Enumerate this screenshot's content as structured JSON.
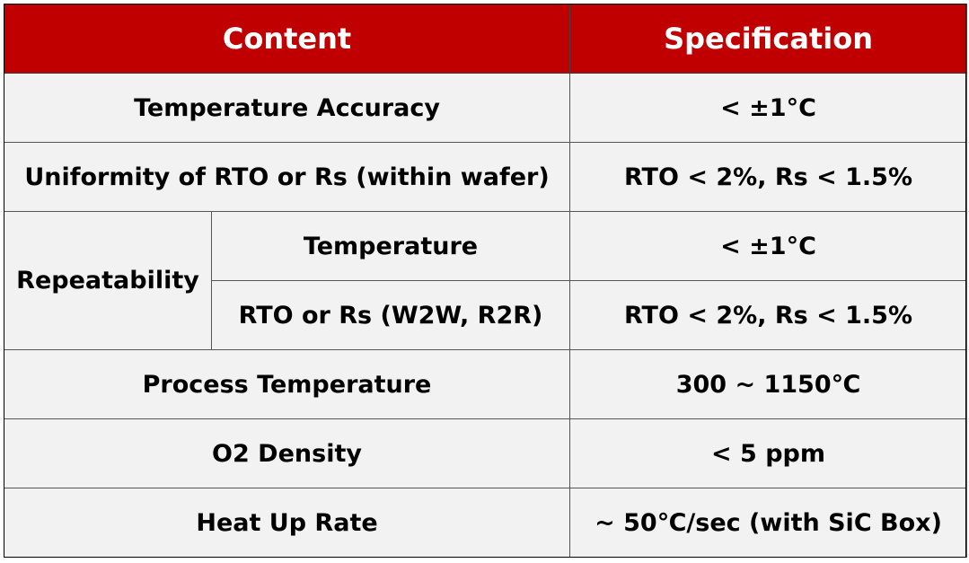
{
  "header": {
    "content_label": "Content",
    "specification_label": "Specification"
  },
  "rows": {
    "temperature_accuracy": {
      "content": "Temperature Accuracy",
      "spec": "< ±1°C"
    },
    "uniformity": {
      "content": "Uniformity of RTO or Rs (within wafer)",
      "spec": "RTO < 2%, Rs < 1.5%"
    },
    "repeatability": {
      "group": "Repeatability",
      "temperature": {
        "content": "Temperature",
        "spec": "< ±1°C"
      },
      "rto_rs": {
        "content": "RTO or Rs (W2W, R2R)",
        "spec": "RTO < 2%, Rs < 1.5%"
      }
    },
    "process_temperature": {
      "content": "Process Temperature",
      "spec": "300 ~ 1150℃"
    },
    "o2_density": {
      "content": "O2 Density",
      "spec": "< 5 ppm"
    },
    "heat_up_rate": {
      "content": "Heat Up Rate",
      "spec": "~ 50℃/sec (with SiC Box)"
    }
  },
  "colors": {
    "header_background": "#c00000",
    "header_text": "#ffffff",
    "cell_background": "#f2f2f2",
    "border": "#555555"
  }
}
